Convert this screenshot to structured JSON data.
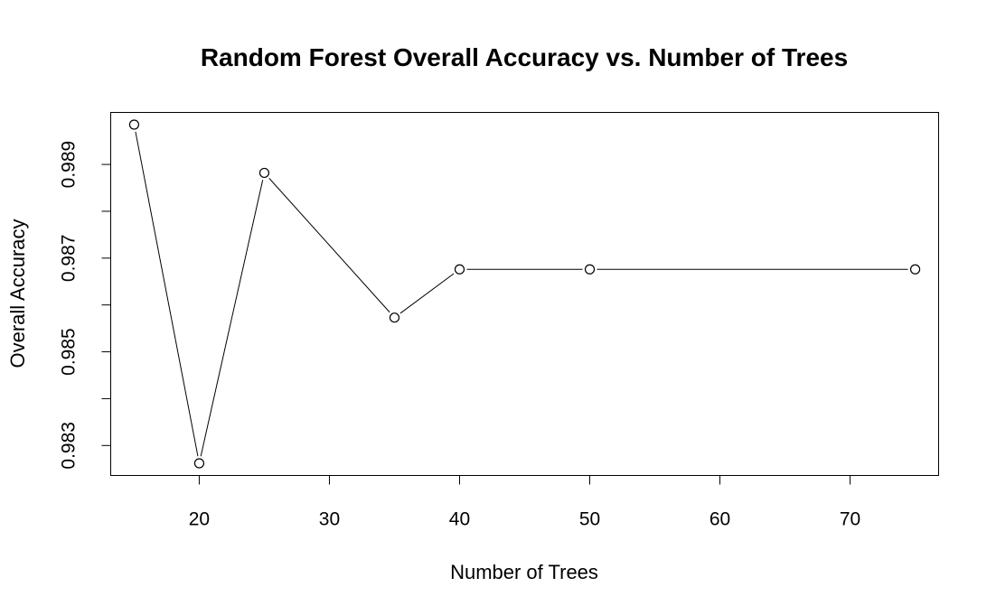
{
  "chart_data": {
    "type": "line",
    "title": "Random Forest Overall Accuracy vs. Number of Trees",
    "xlabel": "Number of Trees",
    "ylabel": "Overall Accuracy",
    "x": [
      15,
      20,
      25,
      35,
      40,
      50,
      75
    ],
    "y": [
      0.98985,
      0.98262,
      0.98882,
      0.98573,
      0.98676,
      0.98676,
      0.98676
    ],
    "xlim": [
      13.2,
      76.8
    ],
    "ylim": [
      0.98236,
      0.99011
    ],
    "x_ticks": [
      20,
      30,
      40,
      50,
      60,
      70
    ],
    "y_ticks": [
      0.983,
      0.984,
      0.985,
      0.986,
      0.987,
      0.988,
      0.989
    ],
    "y_tick_labels": [
      "0.983",
      "",
      "0.985",
      "",
      "0.987",
      "",
      "0.989"
    ],
    "markers": "open-circle",
    "grid": false
  }
}
